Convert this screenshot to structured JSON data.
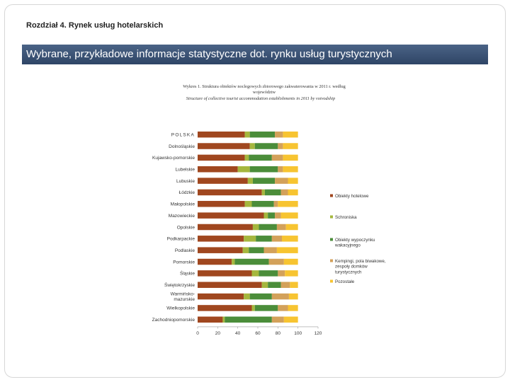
{
  "header": {
    "chapter": "Rozdział 4. Rynek usług hotelarskich",
    "banner": "Wybrane, przykładowe informacje statystyczne dot. rynku usług turystycznych"
  },
  "chart_data": {
    "type": "bar",
    "orientation": "horizontal",
    "stacked": true,
    "title_lines": [
      "Wykres 1. Struktura obiektów noclegowych zbiorowego zakwaterowania w 2011 r. według",
      "województw"
    ],
    "subtitle_lines": [
      "Structure of collective tourist accommodation establishments in 2011 by voivodship"
    ],
    "categories": [
      "POLSKA",
      "Dolnośląskie",
      "Kujawsko-pomorskie",
      "Lubelskie",
      "Lubuskie",
      "Łódzkie",
      "Małopolskie",
      "Mazowieckie",
      "Opolskie",
      "Podkarpackie",
      "Podlaskie",
      "Pomorskie",
      "Śląskie",
      "Świętokrzyskie",
      "Warmińsko-mazurskie",
      "Wielkopolskie",
      "Zachodniopomorskie"
    ],
    "series": [
      {
        "name": "Obiekty hotelowe",
        "color": "#a0471f",
        "values": [
          47,
          52,
          47,
          40,
          50,
          64,
          47,
          66,
          55,
          46,
          45,
          34,
          54,
          64,
          46,
          54,
          25
        ]
      },
      {
        "name": "Schroniska",
        "color": "#a5b73e",
        "values": [
          5,
          5,
          4,
          12,
          5,
          3,
          7,
          4,
          6,
          12,
          6,
          3,
          7,
          6,
          6,
          3,
          2
        ]
      },
      {
        "name": "Obiekty wypoczynku wakacyjnego",
        "color": "#4b8d3a",
        "values": [
          25,
          23,
          23,
          28,
          22,
          16,
          22,
          7,
          18,
          16,
          15,
          34,
          19,
          13,
          22,
          23,
          47
        ]
      },
      {
        "name": "Kempingi, pola biwakowe, zespoły domków turystycznych",
        "color": "#d3a15a",
        "values": [
          8,
          5,
          11,
          5,
          13,
          7,
          4,
          6,
          9,
          10,
          13,
          15,
          7,
          9,
          17,
          10,
          12
        ]
      },
      {
        "name": "Pozostałe",
        "color": "#f7c431",
        "values": [
          15,
          15,
          15,
          15,
          10,
          10,
          20,
          17,
          12,
          16,
          21,
          14,
          13,
          8,
          9,
          10,
          14
        ]
      }
    ],
    "legend_lines": [
      [
        "Obiekty hotelowe"
      ],
      [
        "Schroniska"
      ],
      [
        "Obiekty wypoczynku",
        "wakacyjnego"
      ],
      [
        "Kempingi, pola biwakowe,",
        "zespoły domków",
        "turystycznych"
      ],
      [
        "Pozostałe"
      ]
    ],
    "category_lines": {
      "Warmińsko-mazurskie": [
        "Warmińsko-",
        "mazurskie"
      ]
    },
    "xlim": [
      0,
      120
    ],
    "xticks": [
      0,
      20,
      40,
      60,
      80,
      100,
      120
    ],
    "legend_position": "right"
  }
}
